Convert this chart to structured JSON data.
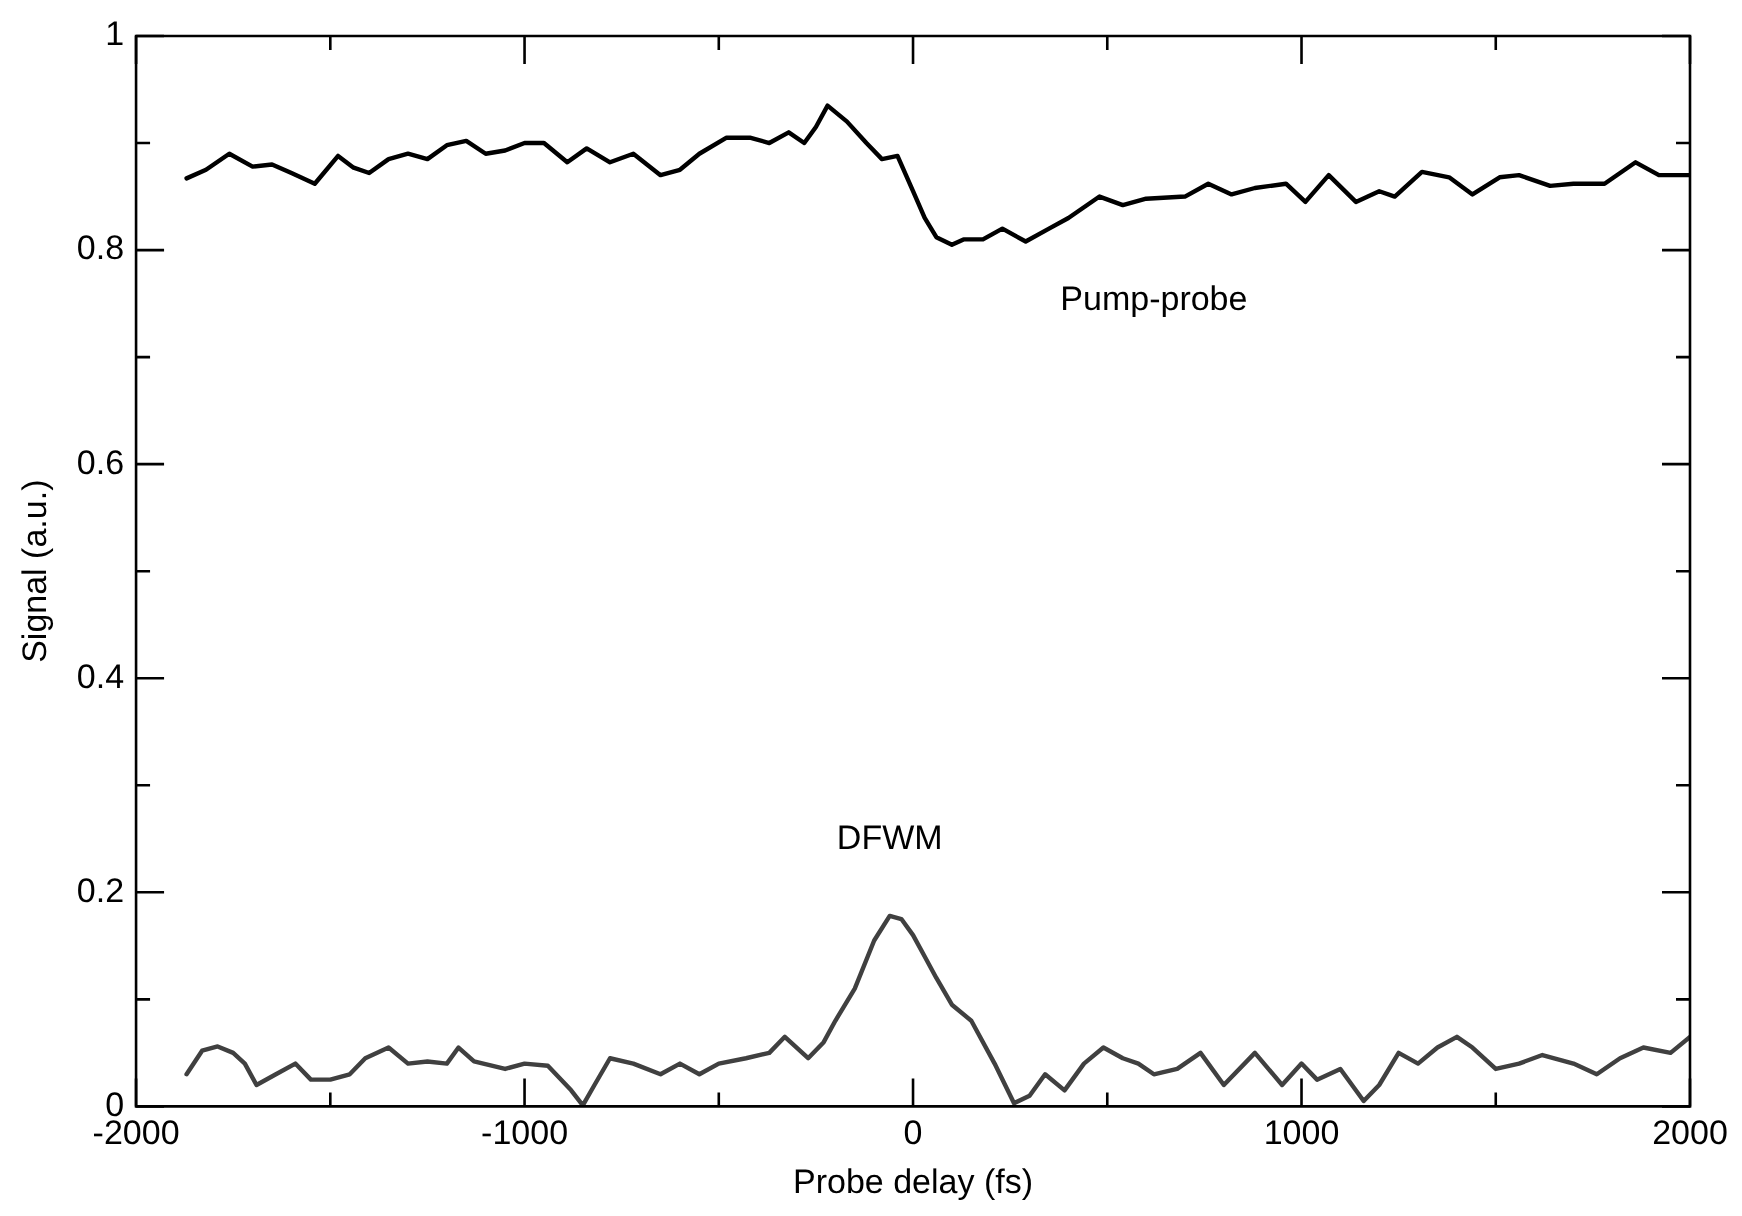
{
  "chart_data": {
    "type": "line",
    "xlabel": "Probe delay (fs)",
    "ylabel": "Signal (a.u.)",
    "xlim": [
      -2000,
      2000
    ],
    "xticks": [
      -2000,
      {
        "value": -1500,
        "label": null
      },
      -1000,
      {
        "value": -500,
        "label": null
      },
      0,
      {
        "value": 500,
        "label": null
      },
      1000,
      {
        "value": 1500,
        "label": null
      },
      2000
    ],
    "ylim": [
      0,
      1
    ],
    "yticks": [
      0,
      {
        "value": 0.1,
        "label": null
      },
      0.2,
      {
        "value": 0.3,
        "label": null
      },
      0.4,
      {
        "value": 0.5,
        "label": null
      },
      0.6,
      {
        "value": 0.7,
        "label": null
      },
      0.8,
      {
        "value": 0.9,
        "label": null
      },
      1
    ],
    "grid": false,
    "legend": false,
    "marker": "none",
    "line_style": "solid",
    "series": [
      {
        "name": "Pump-probe",
        "color": "#000000",
        "x": [
          -1870,
          -1820,
          -1760,
          -1700,
          -1650,
          -1600,
          -1540,
          -1480,
          -1440,
          -1400,
          -1350,
          -1300,
          -1250,
          -1200,
          -1150,
          -1100,
          -1050,
          -1000,
          -950,
          -890,
          -840,
          -780,
          -720,
          -650,
          -600,
          -550,
          -480,
          -420,
          -370,
          -320,
          -280,
          -250,
          -220,
          -170,
          -120,
          -80,
          -40,
          0,
          30,
          60,
          100,
          130,
          180,
          230,
          290,
          350,
          400,
          480,
          540,
          600,
          700,
          760,
          820,
          880,
          960,
          1010,
          1070,
          1140,
          1200,
          1240,
          1310,
          1380,
          1440,
          1510,
          1560,
          1640,
          1700,
          1780,
          1860,
          1920,
          2000
        ],
        "values": [
          0.867,
          0.875,
          0.89,
          0.878,
          0.88,
          0.872,
          0.862,
          0.888,
          0.877,
          0.872,
          0.885,
          0.89,
          0.885,
          0.898,
          0.902,
          0.89,
          0.893,
          0.9,
          0.9,
          0.882,
          0.895,
          0.882,
          0.89,
          0.87,
          0.875,
          0.89,
          0.905,
          0.905,
          0.9,
          0.91,
          0.9,
          0.915,
          0.935,
          0.92,
          0.9,
          0.885,
          0.888,
          0.855,
          0.83,
          0.812,
          0.805,
          0.81,
          0.81,
          0.82,
          0.808,
          0.82,
          0.83,
          0.85,
          0.842,
          0.848,
          0.85,
          0.862,
          0.852,
          0.858,
          0.862,
          0.845,
          0.87,
          0.845,
          0.855,
          0.85,
          0.873,
          0.868,
          0.852,
          0.868,
          0.87,
          0.86,
          0.862,
          0.862,
          0.882,
          0.87,
          0.87
        ]
      },
      {
        "name": "DFWM",
        "color": "#404040",
        "x": [
          -1870,
          -1830,
          -1790,
          -1750,
          -1720,
          -1690,
          -1640,
          -1590,
          -1550,
          -1500,
          -1450,
          -1410,
          -1350,
          -1300,
          -1250,
          -1200,
          -1170,
          -1130,
          -1050,
          -1000,
          -940,
          -880,
          -850,
          -820,
          -780,
          -720,
          -650,
          -600,
          -550,
          -500,
          -430,
          -370,
          -330,
          -270,
          -230,
          -200,
          -150,
          -100,
          -60,
          -30,
          0,
          30,
          60,
          100,
          150,
          210,
          260,
          300,
          340,
          390,
          440,
          490,
          540,
          580,
          620,
          680,
          740,
          800,
          880,
          950,
          1000,
          1040,
          1100,
          1160,
          1200,
          1250,
          1300,
          1350,
          1400,
          1440,
          1500,
          1560,
          1620,
          1700,
          1760,
          1820,
          1880,
          1950,
          2000
        ],
        "values": [
          0.03,
          0.052,
          0.056,
          0.05,
          0.04,
          0.02,
          0.03,
          0.04,
          0.025,
          0.025,
          0.03,
          0.045,
          0.055,
          0.04,
          0.042,
          0.04,
          0.055,
          0.042,
          0.035,
          0.04,
          0.038,
          0.015,
          0.001,
          0.02,
          0.045,
          0.04,
          0.03,
          0.04,
          0.03,
          0.04,
          0.045,
          0.05,
          0.065,
          0.045,
          0.06,
          0.08,
          0.11,
          0.155,
          0.178,
          0.175,
          0.16,
          0.14,
          0.12,
          0.095,
          0.08,
          0.04,
          0.003,
          0.01,
          0.03,
          0.015,
          0.04,
          0.055,
          0.045,
          0.04,
          0.03,
          0.035,
          0.05,
          0.02,
          0.05,
          0.02,
          0.04,
          0.025,
          0.035,
          0.005,
          0.02,
          0.05,
          0.04,
          0.055,
          0.065,
          0.055,
          0.035,
          0.04,
          0.048,
          0.04,
          0.03,
          0.045,
          0.055,
          0.05,
          0.065
        ]
      }
    ]
  }
}
